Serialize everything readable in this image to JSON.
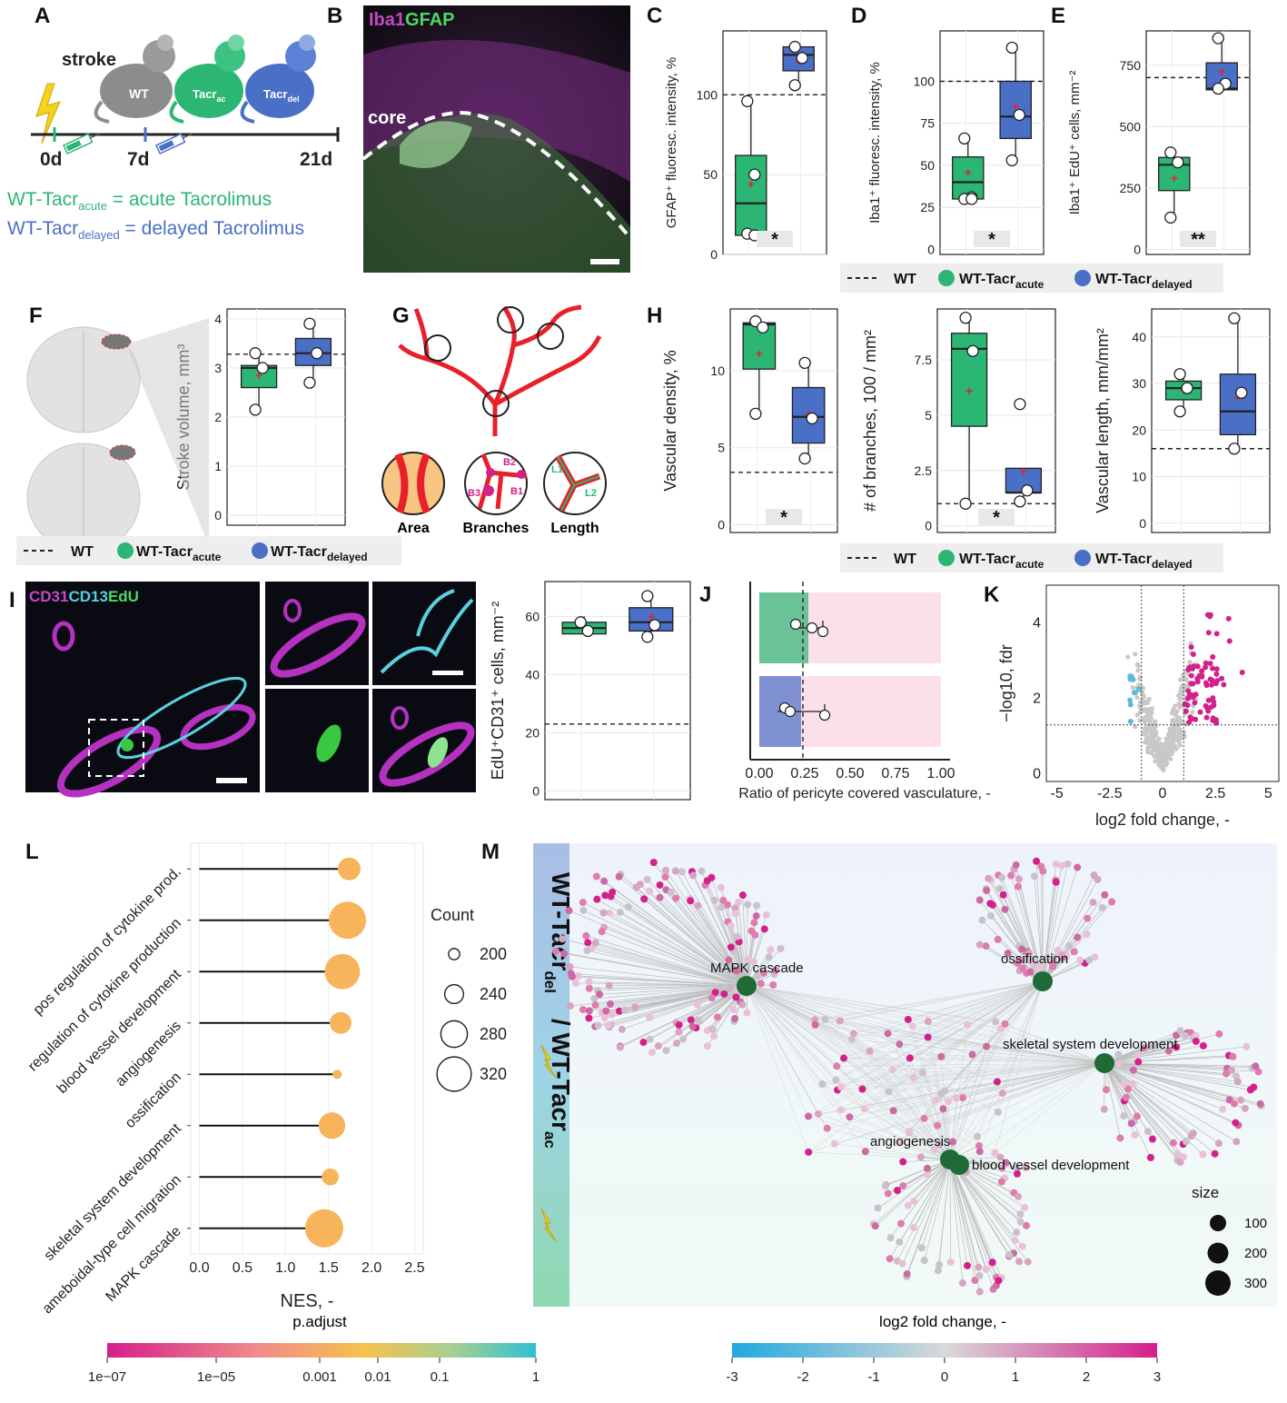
{
  "panels": {
    "A": "A",
    "B": "B",
    "C": "C",
    "D": "D",
    "E": "E",
    "F": "F",
    "G": "G",
    "H": "H",
    "I": "I",
    "J": "J",
    "K": "K",
    "L": "L",
    "M": "M"
  },
  "scheme": {
    "stroke": "stroke",
    "mouse_wt": "WT",
    "mouse_acute": "Tacr",
    "mouse_acute_sub": "ac",
    "mouse_delayed": "Tacr",
    "mouse_delayed_sub": "del",
    "t0": "0d",
    "t7": "7d",
    "t21": "21d",
    "def_acute_main": "WT-Tacr",
    "def_acute_sub": "acute",
    "def_acute_rest": " = acute Tacrolimus",
    "def_delayed_main": "WT-Tacr",
    "def_delayed_sub": "delayed",
    "def_delayed_rest": " = delayed Tacrolimus"
  },
  "micro_b": {
    "label_a": "Iba1",
    "label_b": "GFAP",
    "core": "core"
  },
  "micro_i": {
    "l1": "CD31",
    "l2": "CD13",
    "l3": "EdU"
  },
  "schematic_g": {
    "area": "Area",
    "branches": "Branches",
    "length": "Length",
    "b1": "B1",
    "b2": "B2",
    "b3": "B3",
    "l1": "L1",
    "l2": "L2"
  },
  "legend": {
    "wt": "WT",
    "acute_main": "WT-Tacr",
    "acute_sub": "acute",
    "delayed_main": "WT-Tacr",
    "delayed_sub": "delayed"
  },
  "colors": {
    "acute": "#2bb673",
    "delayed": "#4a6fc7",
    "pink": "#d3208b",
    "node": "#1e6b35",
    "edge": "#bdbdbd",
    "lollipop": "#f7b45a"
  },
  "chart_data": [
    {
      "id": "C",
      "type": "box",
      "ylabel": "GFAP⁺ fluoresc. intensity, %",
      "ylim": [
        0,
        140
      ],
      "ticks": [
        0,
        50,
        100
      ],
      "reference_wt": 100,
      "significance": "*",
      "groups": [
        {
          "name": "WT-Tacr acute",
          "min": 12,
          "q1": 12,
          "median": 32,
          "q3": 62,
          "max": 96,
          "mean": 44,
          "points": [
            96,
            50,
            13,
            12
          ]
        },
        {
          "name": "WT-Tacr delayed",
          "min": 105,
          "q1": 115,
          "median": 125,
          "q3": 130,
          "max": 131,
          "mean": 121,
          "points": [
            130,
            123,
            106
          ]
        }
      ]
    },
    {
      "id": "D",
      "type": "box",
      "ylabel": "Iba1⁺ fluoresc. intensity, %",
      "ylim": [
        -3,
        130
      ],
      "ticks": [
        0,
        25,
        50,
        75,
        100
      ],
      "reference_wt": 100,
      "significance": "*",
      "groups": [
        {
          "name": "WT-Tacr acute",
          "min": 30,
          "q1": 30,
          "median": 40,
          "q3": 55,
          "max": 66,
          "mean": 46,
          "points": [
            66,
            31,
            30,
            30
          ]
        },
        {
          "name": "WT-Tacr delayed",
          "min": 53,
          "q1": 66,
          "median": 79,
          "q3": 100,
          "max": 120,
          "mean": 85,
          "points": [
            120,
            80,
            53
          ]
        }
      ]
    },
    {
      "id": "E",
      "type": "box",
      "ylabel": "Iba1⁺ EdU⁺ cells, mm⁻²",
      "ylim": [
        -20,
        890
      ],
      "ticks": [
        0,
        250,
        500,
        750
      ],
      "reference_wt": 700,
      "significance": "**",
      "groups": [
        {
          "name": "WT-Tacr acute",
          "min": 130,
          "q1": 240,
          "median": 345,
          "q3": 375,
          "max": 390,
          "mean": 290,
          "points": [
            395,
            355,
            130
          ]
        },
        {
          "name": "WT-Tacr delayed",
          "min": 640,
          "q1": 650,
          "median": 655,
          "q3": 760,
          "max": 870,
          "mean": 725,
          "points": [
            860,
            675,
            655
          ]
        }
      ]
    },
    {
      "id": "F",
      "type": "box",
      "ylabel": "Stroke volume, mm³",
      "ylim": [
        -0.2,
        4.2
      ],
      "ticks": [
        0,
        1,
        2,
        3,
        4
      ],
      "reference_wt": 3.28,
      "groups": [
        {
          "name": "WT-Tacr acute",
          "min": 2.15,
          "q1": 2.6,
          "median": 3.0,
          "q3": 3.05,
          "max": 3.3,
          "mean": 2.85,
          "points": [
            3.3,
            3.0,
            2.15
          ]
        },
        {
          "name": "WT-Tacr delayed",
          "min": 2.7,
          "q1": 3.05,
          "median": 3.3,
          "q3": 3.6,
          "max": 3.9,
          "mean": 3.3,
          "points": [
            3.9,
            3.3,
            2.7
          ]
        }
      ]
    },
    {
      "id": "H1",
      "type": "box",
      "ylabel": "Vascular density, %",
      "ylim": [
        -0.5,
        14
      ],
      "ticks": [
        0,
        5,
        10
      ],
      "reference_wt": 3.4,
      "significance": "*",
      "groups": [
        {
          "name": "WT-Tacr acute",
          "min": 7.2,
          "q1": 10.1,
          "median": 13,
          "q3": 13.1,
          "max": 13.2,
          "mean": 11.1,
          "points": [
            13.2,
            12.8,
            7.2
          ]
        },
        {
          "name": "WT-Tacr delayed",
          "min": 4.3,
          "q1": 5.3,
          "median": 7,
          "q3": 8.9,
          "max": 10.6,
          "mean": 7.2,
          "points": [
            10.5,
            6.9,
            4.3
          ]
        }
      ]
    },
    {
      "id": "H2",
      "type": "box",
      "ylabel": "# of branches, 100 / mm²",
      "ylim": [
        -0.3,
        9.8
      ],
      "ticks": [
        0.0,
        2.5,
        5.0,
        7.5
      ],
      "reference_wt": 1.0,
      "significance": "*",
      "groups": [
        {
          "name": "WT-Tacr acute",
          "min": 1.0,
          "q1": 4.5,
          "median": 8.0,
          "q3": 8.7,
          "max": 9.4,
          "mean": 6.1,
          "points": [
            9.4,
            7.9,
            1.0
          ]
        },
        {
          "name": "WT-Tacr delayed",
          "min": 1.2,
          "q1": 1.5,
          "median": 1.5,
          "q3": 2.6,
          "max": 2.6,
          "mean": 2.5,
          "points": [
            5.5,
            1.6,
            1.1
          ]
        }
      ]
    },
    {
      "id": "H3",
      "type": "box",
      "ylabel": "Vascular length, mm/mm²",
      "ylim": [
        -2,
        46
      ],
      "ticks": [
        0,
        10,
        20,
        30,
        40
      ],
      "reference_wt": 16,
      "groups": [
        {
          "name": "WT-Tacr acute",
          "min": 24,
          "q1": 26.5,
          "median": 29,
          "q3": 30.5,
          "max": 32,
          "mean": 28.5,
          "points": [
            32,
            29,
            24
          ]
        },
        {
          "name": "WT-Tacr delayed",
          "min": 16,
          "q1": 19,
          "median": 24,
          "q3": 32,
          "max": 44,
          "mean": 27,
          "points": [
            44,
            28,
            16
          ]
        }
      ]
    },
    {
      "id": "I",
      "type": "box",
      "ylabel": "EdU⁺CD31⁺ cells, mm⁻²",
      "ylim": [
        -3,
        72
      ],
      "ticks": [
        0,
        20,
        40,
        60
      ],
      "reference_wt": 23,
      "groups": [
        {
          "name": "WT-Tacr acute",
          "min": 54,
          "q1": 54,
          "median": 56,
          "q3": 58,
          "max": 60,
          "mean": 56,
          "points": [
            58,
            55
          ]
        },
        {
          "name": "WT-Tacr delayed",
          "min": 52,
          "q1": 55,
          "median": 58,
          "q3": 63,
          "max": 68,
          "mean": 60,
          "points": [
            67,
            57,
            53
          ]
        }
      ]
    },
    {
      "id": "J",
      "type": "bar",
      "xlabel": "Ratio of pericyte covered vasculature,  -",
      "xlim": [
        0,
        1.0
      ],
      "ticks": [
        0.0,
        0.25,
        0.5,
        0.75,
        1.0
      ],
      "reference_wt": 0.24,
      "groups": [
        {
          "name": "WT-Tacr acute",
          "value": 0.27,
          "points": [
            0.2,
            0.29,
            0.35
          ],
          "err": [
            0.2,
            0.35
          ]
        },
        {
          "name": "WT-Tacr delayed",
          "value": 0.23,
          "points": [
            0.14,
            0.17,
            0.36
          ],
          "err": [
            0.1,
            0.36
          ]
        }
      ]
    },
    {
      "id": "K",
      "type": "scatter",
      "xlabel": "log2 fold change, -",
      "ylabel": "−log10, fdr",
      "xlim": [
        -5.5,
        5.5
      ],
      "ylim": [
        -0.2,
        5.0
      ],
      "xticks": [
        -5,
        -2.5,
        0,
        2.5,
        5
      ],
      "yticks": [
        0,
        2,
        4
      ],
      "thresholds": {
        "x": [
          -1,
          1
        ],
        "y": 1.3
      }
    },
    {
      "id": "L",
      "type": "lollipop",
      "xlabel": "NES, -",
      "xlim": [
        -0.1,
        2.6
      ],
      "xticks": [
        0.0,
        0.5,
        1.0,
        1.5,
        2.0,
        2.5
      ],
      "size_legend_title": "Count",
      "size_legend": [
        200,
        240,
        280,
        320
      ],
      "color_legend_title": "p.adjust",
      "color_ticks": [
        "1e−07",
        "1e−05",
        "0.001",
        "0.01",
        "0.1",
        "1"
      ],
      "terms": [
        {
          "label": "pos regulation of cytokine prod.",
          "nes": 1.74,
          "count": 260
        },
        {
          "label": "regulation of cytokine production",
          "nes": 1.72,
          "count": 335
        },
        {
          "label": "blood vessel development",
          "nes": 1.66,
          "count": 325
        },
        {
          "label": "angiogenesis",
          "nes": 1.64,
          "count": 255
        },
        {
          "label": "ossification",
          "nes": 1.6,
          "count": 190
        },
        {
          "label": "skeletal system development",
          "nes": 1.54,
          "count": 280
        },
        {
          "label": "ameboidal-type cell migration",
          "nes": 1.52,
          "count": 230
        },
        {
          "label": "MAPK cascade",
          "nes": 1.45,
          "count": 340
        }
      ]
    },
    {
      "id": "M",
      "type": "network",
      "side_label_a": "WT-Tacr",
      "side_label_a_sub": "del",
      "side_label_b": "/ WT-Tacr",
      "side_label_b_sub": "ac",
      "nodes": [
        "MAPK cascade",
        "ossification",
        "skeletal system development",
        "angiogenesis",
        "blood vessel development"
      ],
      "size_legend_title": "size",
      "size_legend": [
        100,
        200,
        300
      ],
      "color_legend_title": "log2 fold change, -",
      "color_ticks": [
        "-3",
        "-2",
        "-1",
        "0",
        "1",
        "2",
        "3"
      ]
    }
  ]
}
